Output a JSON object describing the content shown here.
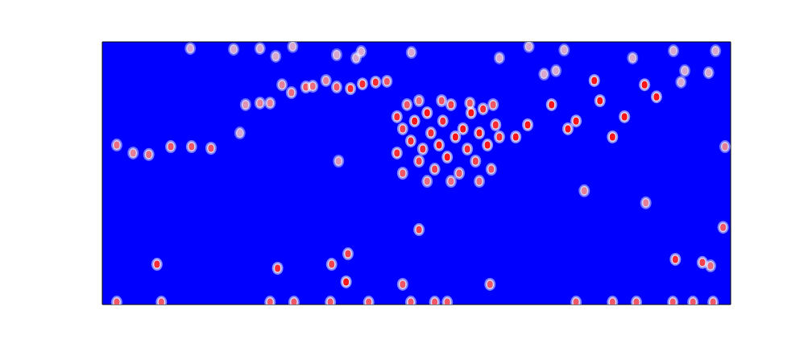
{
  "chart_data": {
    "type": "scatter",
    "marker": "ellipse",
    "color": "#ff0000",
    "grid": false,
    "tick_labels": false,
    "xlim": [
      0,
      100
    ],
    "ylim": [
      0,
      100
    ],
    "xticks": [],
    "yticks": [],
    "intensity_range": [
      0,
      1
    ],
    "x": [
      14.0,
      20.9,
      25.1,
      30.3,
      27.6,
      37.3,
      40.4,
      41.2,
      49.2,
      63.2,
      67.9,
      73.5,
      84.4,
      90.9,
      97.6,
      70.3,
      72.2,
      92.7,
      96.5,
      92.1,
      28.6,
      30.1,
      32.4,
      33.5,
      35.6,
      37.3,
      39.5,
      41.4,
      43.5,
      45.3,
      22.8,
      25.1,
      26.7,
      21.9,
      2.3,
      4.9,
      7.4,
      10.9,
      14.2,
      17.3,
      37.6,
      46.9,
      46.9,
      47.8,
      48.5,
      49.1,
      49.7,
      50.4,
      51.0,
      51.7,
      52.3,
      52.9,
      53.6,
      54.2,
      54.9,
      55.5,
      56.2,
      56.8,
      57.4,
      58.1,
      58.7,
      59.4,
      60.0,
      60.6,
      61.3,
      61.9,
      62.6,
      50.4,
      54.0,
      58.5,
      62.2,
      47.8,
      51.7,
      55.5,
      60.0,
      63.2,
      65.8,
      67.7,
      71.5,
      74.1,
      75.4,
      78.3,
      79.2,
      81.2,
      83.1,
      86.3,
      88.2,
      99.1,
      76.7,
      86.5,
      50.4,
      98.8,
      8.7,
      27.9,
      36.5,
      39.1,
      38.8,
      47.8,
      61.7,
      91.2,
      95.5,
      96.8,
      2.3,
      9.4,
      26.7,
      30.5,
      36.3,
      42.4,
      49.1,
      52.9,
      54.9,
      75.4,
      81.2,
      85.0,
      90.8,
      94.0,
      97.2
    ],
    "y": [
      97.5,
      97.2,
      97.5,
      98.2,
      94.5,
      95.1,
      93.9,
      96.3,
      96.0,
      93.9,
      98.2,
      96.9,
      93.9,
      96.6,
      96.6,
      87.7,
      89.0,
      89.0,
      88.3,
      84.7,
      83.7,
      80.7,
      82.8,
      83.1,
      85.3,
      82.8,
      82.2,
      84.0,
      84.7,
      85.0,
      76.1,
      76.7,
      76.7,
      65.3,
      60.7,
      57.7,
      57.1,
      60.1,
      60.1,
      59.5,
      54.6,
      71.5,
      57.7,
      66.9,
      76.1,
      62.3,
      69.9,
      54.6,
      59.2,
      73.0,
      65.3,
      51.5,
      60.7,
      69.9,
      56.1,
      76.1,
      63.8,
      50.0,
      66.9,
      59.2,
      73.0,
      54.6,
      65.3,
      74.5,
      60.7,
      51.5,
      68.4,
      77.6,
      77.6,
      76.7,
      76.1,
      50.0,
      46.9,
      46.9,
      46.9,
      63.8,
      63.8,
      68.4,
      76.1,
      66.9,
      69.9,
      85.3,
      77.6,
      63.8,
      71.5,
      83.7,
      79.1,
      60.1,
      43.3,
      38.7,
      28.5,
      29.4,
      15.3,
      13.8,
      15.3,
      19.3,
      8.6,
      7.7,
      7.7,
      17.2,
      16.0,
      14.7,
      0.9,
      0.9,
      0.9,
      0.9,
      0.9,
      0.9,
      0.9,
      0.9,
      0.9,
      0.9,
      0.9,
      0.9,
      0.9,
      0.9,
      0.9
    ],
    "intensity": [
      0.2,
      0.2,
      0.2,
      0.2,
      0.2,
      0.2,
      0.2,
      0.2,
      0.2,
      0.2,
      0.2,
      0.2,
      0.2,
      0.2,
      0.2,
      0.2,
      0.2,
      0.2,
      0.2,
      0.2,
      0.4,
      0.5,
      0.6,
      0.5,
      0.4,
      0.6,
      0.8,
      0.8,
      0.8,
      0.6,
      0.3,
      0.4,
      0.4,
      0.2,
      0.5,
      0.4,
      0.5,
      0.6,
      0.6,
      0.6,
      0.3,
      0.8,
      0.8,
      0.7,
      0.6,
      0.8,
      0.9,
      0.7,
      0.8,
      0.9,
      0.8,
      0.7,
      0.9,
      0.8,
      0.9,
      0.7,
      0.9,
      0.6,
      0.9,
      0.8,
      0.9,
      0.7,
      0.9,
      0.8,
      0.9,
      0.6,
      0.8,
      0.5,
      0.6,
      0.6,
      0.6,
      0.6,
      0.5,
      0.5,
      0.5,
      0.8,
      0.9,
      0.9,
      0.9,
      0.9,
      0.9,
      0.9,
      0.9,
      0.9,
      0.9,
      0.9,
      0.9,
      0.4,
      0.4,
      0.4,
      0.7,
      0.6,
      0.8,
      0.8,
      0.7,
      0.7,
      0.9,
      0.6,
      0.6,
      0.8,
      0.7,
      0.5,
      0.6,
      0.6,
      0.6,
      0.6,
      0.6,
      0.6,
      0.6,
      0.6,
      0.6,
      0.6,
      0.6,
      0.6,
      0.6,
      0.6,
      0.6
    ]
  }
}
